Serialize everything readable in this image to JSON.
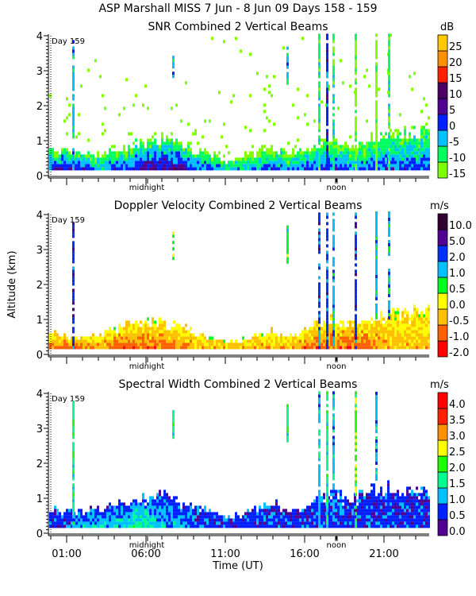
{
  "header": {
    "title": "ASP Marshall MISS    7 Jun -  8 Jun 09 Days 158 - 159"
  },
  "chart_data": [
    {
      "type": "heatmap",
      "title": "SNR Combined 2 Vertical Beams",
      "day_label": "Day 159",
      "xlabel": "Time (UT)",
      "ylabel": "Altitude (km)",
      "xlim_hours": [
        0,
        23.8
      ],
      "ylim_km": [
        0,
        4
      ],
      "yticks": [
        "0",
        "1",
        "2",
        "3",
        "4"
      ],
      "xticks": [
        "01:00",
        "06:00",
        "11:00",
        "16:00",
        "21:00"
      ],
      "xtick_hours": [
        1,
        6,
        11,
        16,
        21
      ],
      "annotations": [
        {
          "text": "midnight",
          "hour": 6.05
        },
        {
          "text": "noon",
          "hour": 18
        }
      ],
      "colorbar": {
        "unit": "dB",
        "levels": [
          "-15",
          "-10",
          "-5",
          "0",
          "5",
          "10",
          "15",
          "20",
          "25"
        ],
        "colors": [
          "#80ff00",
          "#00ff60",
          "#00c0ff",
          "#0020ff",
          "#500090",
          "#4a0060",
          "#ff2000",
          "#ff9000",
          "#ffc800"
        ]
      },
      "data_min_km": 0.15,
      "layer_top_km": [
        0.8,
        0.7,
        0.6,
        0.6,
        0.8,
        0.9,
        1.0,
        1.1,
        0.9,
        0.7,
        0.6,
        0.4,
        0.5,
        0.7,
        0.8,
        0.6,
        0.7,
        0.9,
        0.9,
        0.8,
        1.0,
        1.1,
        1.2,
        1.3
      ],
      "surface_level_index": [
        3,
        4,
        3,
        2,
        3,
        3,
        4,
        4,
        4,
        3,
        3,
        2,
        2,
        2,
        3,
        2,
        3,
        3,
        3,
        2,
        3,
        3,
        3,
        3
      ],
      "top_level_index": 0,
      "sparse_above_layer": true,
      "plumes": [
        {
          "hour": 1.4,
          "bottom_km": 0.15,
          "top_km": 3.8,
          "level_index": 2
        },
        {
          "hour": 7.7,
          "bottom_km": 2.7,
          "top_km": 3.5,
          "level_index": 2
        },
        {
          "hour": 14.9,
          "bottom_km": 2.6,
          "top_km": 3.6,
          "level_index": 2
        },
        {
          "hour": 16.9,
          "bottom_km": 0.15,
          "top_km": 4.0,
          "level_index": 1
        },
        {
          "hour": 17.4,
          "bottom_km": 0.15,
          "top_km": 4.0,
          "level_index": 3
        },
        {
          "hour": 17.8,
          "bottom_km": 0.15,
          "top_km": 4.0,
          "level_index": 1
        },
        {
          "hour": 19.2,
          "bottom_km": 0.15,
          "top_km": 4.0,
          "level_index": 0
        },
        {
          "hour": 20.5,
          "bottom_km": 0.15,
          "top_km": 4.0,
          "level_index": 0
        },
        {
          "hour": 21.3,
          "bottom_km": 0.15,
          "top_km": 4.0,
          "level_index": 1
        }
      ]
    },
    {
      "type": "heatmap",
      "title": "Doppler Velocity Combined 2 Vertical Beams",
      "day_label": "Day 159",
      "xlim_hours": [
        0,
        23.8
      ],
      "ylim_km": [
        0,
        4
      ],
      "yticks": [
        "0",
        "1",
        "2",
        "3",
        "4"
      ],
      "annotations": [
        {
          "text": "midnight",
          "hour": 6.05
        },
        {
          "text": "noon",
          "hour": 18
        }
      ],
      "colorbar": {
        "unit": "m/s",
        "levels": [
          "-2.0",
          "-1.0",
          "-0.5",
          "0.0",
          "0.5",
          "1.0",
          "2.0",
          "5.0",
          "10.0"
        ],
        "colors": [
          "#ff0000",
          "#ff6000",
          "#ffc000",
          "#ffff00",
          "#00ff20",
          "#00c0ff",
          "#0030ff",
          "#500090",
          "#300030"
        ]
      },
      "data_min_km": 0.15,
      "layer_top_km": [
        0.6,
        0.5,
        0.5,
        0.5,
        0.7,
        0.8,
        0.9,
        0.9,
        0.8,
        0.6,
        0.5,
        0.3,
        0.4,
        0.5,
        0.6,
        0.5,
        0.7,
        0.9,
        0.9,
        0.8,
        1.0,
        1.1,
        1.2,
        1.2
      ],
      "surface_level_index": [
        1,
        1,
        1,
        2,
        1,
        1,
        1,
        1,
        1,
        2,
        2,
        2,
        2,
        2,
        2,
        2,
        1,
        1,
        1,
        1,
        1,
        2,
        2,
        2
      ],
      "top_level_index": 3,
      "sparse_above_layer": false,
      "plumes": [
        {
          "hour": 1.4,
          "bottom_km": 0.15,
          "top_km": 3.7,
          "level_index": 6
        },
        {
          "hour": 7.7,
          "bottom_km": 2.7,
          "top_km": 3.5,
          "level_index": 4
        },
        {
          "hour": 14.9,
          "bottom_km": 2.6,
          "top_km": 3.6,
          "level_index": 4
        },
        {
          "hour": 16.9,
          "bottom_km": 0.15,
          "top_km": 4.0,
          "level_index": 6
        },
        {
          "hour": 17.4,
          "bottom_km": 0.15,
          "top_km": 4.0,
          "level_index": 6
        },
        {
          "hour": 17.8,
          "bottom_km": 0.15,
          "top_km": 4.0,
          "level_index": 5
        },
        {
          "hour": 19.2,
          "bottom_km": 0.15,
          "top_km": 4.0,
          "level_index": 6
        },
        {
          "hour": 20.5,
          "bottom_km": 1.0,
          "top_km": 4.0,
          "level_index": 5
        },
        {
          "hour": 21.3,
          "bottom_km": 1.0,
          "top_km": 4.0,
          "level_index": 5
        }
      ]
    },
    {
      "type": "heatmap",
      "title": "Spectral Width Combined 2 Vertical Beams",
      "day_label": "Day 159",
      "xlim_hours": [
        0,
        23.8
      ],
      "ylim_km": [
        0,
        4
      ],
      "yticks": [
        "0",
        "1",
        "2",
        "3",
        "4"
      ],
      "annotations": [
        {
          "text": "midnight",
          "hour": 6.05
        },
        {
          "text": "noon",
          "hour": 18
        }
      ],
      "colorbar": {
        "unit": "m/s",
        "levels": [
          "0.0",
          "0.5",
          "1.0",
          "1.5",
          "2.0",
          "2.5",
          "3.0",
          "3.5",
          "4.0"
        ],
        "colors": [
          "#500090",
          "#0020ff",
          "#00c0ff",
          "#00ff90",
          "#20ff00",
          "#ffff00",
          "#ff9000",
          "#ff2000",
          "#ff0000"
        ]
      },
      "data_min_km": 0.15,
      "layer_top_km": [
        0.7,
        0.6,
        0.6,
        0.6,
        0.8,
        0.9,
        1.0,
        1.1,
        0.9,
        0.7,
        0.6,
        0.4,
        0.5,
        0.7,
        0.8,
        0.6,
        0.8,
        1.0,
        1.1,
        1.0,
        1.2,
        1.3,
        1.3,
        1.2
      ],
      "surface_level_index": [
        1,
        1,
        2,
        2,
        2,
        3,
        3,
        2,
        2,
        1,
        1,
        1,
        1,
        1,
        1,
        1,
        1,
        1,
        1,
        1,
        1,
        1,
        1,
        1
      ],
      "top_level_index": 1,
      "sparse_above_layer": false,
      "plumes": [
        {
          "hour": 1.4,
          "bottom_km": 0.15,
          "top_km": 3.7,
          "level_index": 3
        },
        {
          "hour": 7.7,
          "bottom_km": 2.7,
          "top_km": 3.5,
          "level_index": 3
        },
        {
          "hour": 14.9,
          "bottom_km": 2.6,
          "top_km": 3.6,
          "level_index": 3
        },
        {
          "hour": 16.9,
          "bottom_km": 0.15,
          "top_km": 4.0,
          "level_index": 2
        },
        {
          "hour": 17.4,
          "bottom_km": 0.15,
          "top_km": 4.0,
          "level_index": 3
        },
        {
          "hour": 17.8,
          "bottom_km": 0.15,
          "top_km": 4.0,
          "level_index": 2
        },
        {
          "hour": 19.2,
          "bottom_km": 0.15,
          "top_km": 4.0,
          "level_index": 4
        },
        {
          "hour": 20.5,
          "bottom_km": 1.5,
          "top_km": 4.0,
          "level_index": 2
        }
      ]
    }
  ]
}
